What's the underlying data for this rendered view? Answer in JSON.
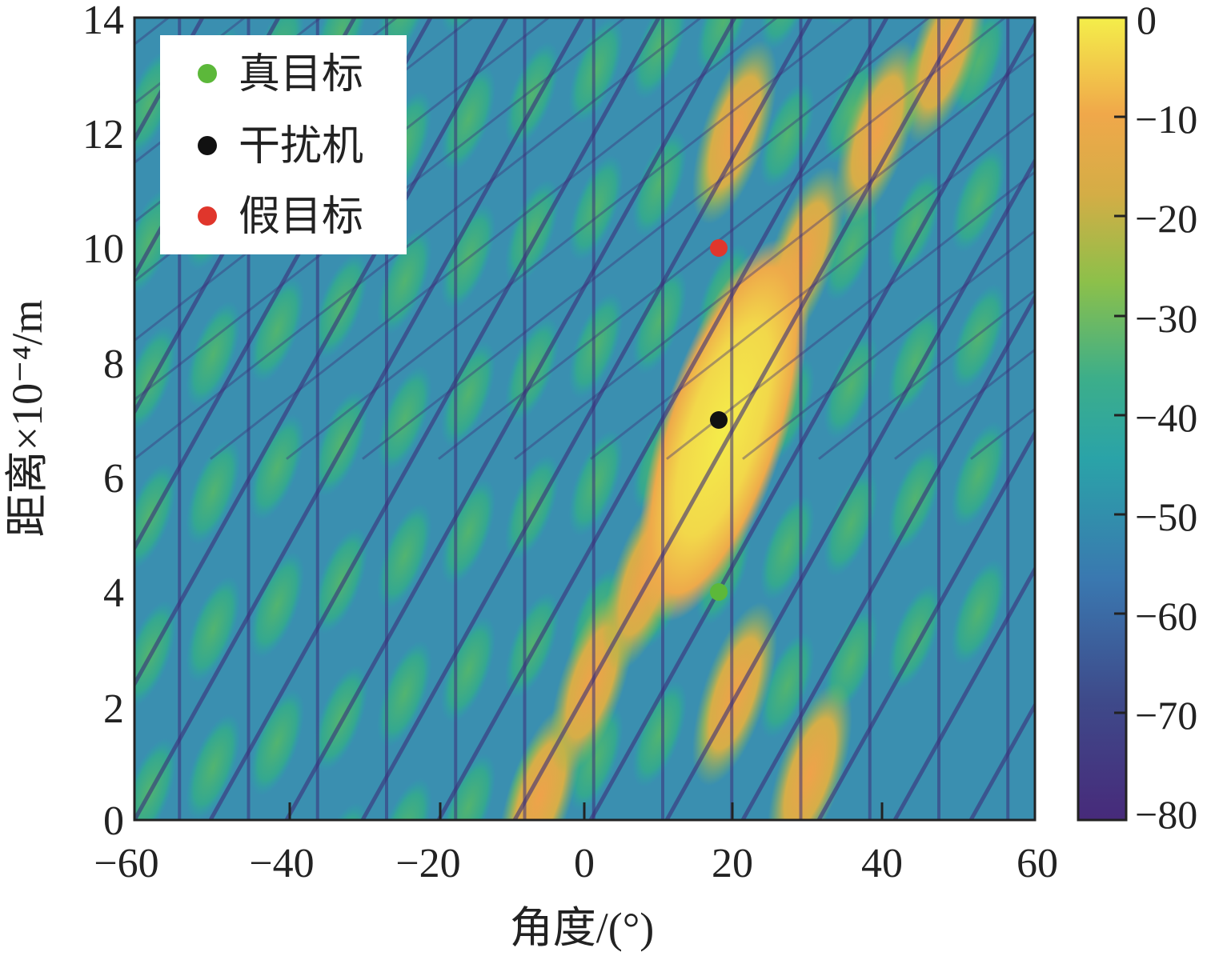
{
  "chart_data": {
    "type": "heatmap",
    "title": "",
    "xlabel": "角度/(°)",
    "ylabel": "距离×10⁻⁴/m",
    "xlim": [
      -60,
      60
    ],
    "ylim": [
      0,
      14
    ],
    "xticks": [
      "−60",
      "−40",
      "−20",
      "0",
      "20",
      "40",
      "60"
    ],
    "yticks": [
      "0",
      "2",
      "4",
      "6",
      "8",
      "10",
      "12",
      "14"
    ],
    "colorbar": {
      "range": [
        -80,
        0
      ],
      "ticks": [
        "0",
        "−10",
        "−20",
        "−30",
        "−40",
        "−50",
        "−60",
        "−70",
        "−80"
      ],
      "colormap": [
        "#46327e",
        "#365c8d",
        "#277f8e",
        "#1fa187",
        "#4ac16d",
        "#a0da39",
        "#e0c040",
        "#f0a848",
        "#f0e040"
      ]
    },
    "series": [
      {
        "name": "真目标",
        "color": "#5cb83a",
        "points": [
          {
            "x": 18,
            "y": 4
          }
        ]
      },
      {
        "name": "干扰机",
        "color": "#111111",
        "points": [
          {
            "x": 18,
            "y": 7
          }
        ]
      },
      {
        "name": "假目标",
        "color": "#e0362c",
        "points": [
          {
            "x": 18,
            "y": 10
          }
        ]
      }
    ],
    "legend": "top-left",
    "grid": false
  }
}
